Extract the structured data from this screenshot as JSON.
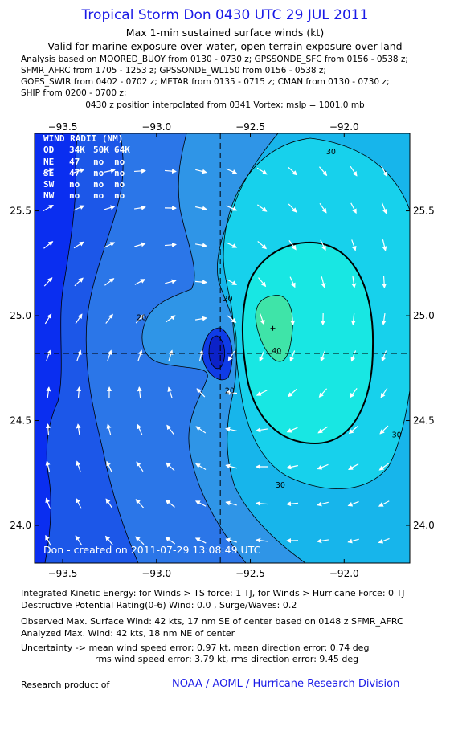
{
  "header": {
    "title": "Tropical Storm Don 0430 UTC 29 JUL 2011",
    "subtitle1": "Max 1-min sustained surface winds (kt)",
    "subtitle2": "Valid for marine exposure over water, open terrain exposure over land",
    "analysis_lines": [
      "Analysis based on MOORED_BUOY from 0130 - 0730 z; GPSSONDE_SFC from 0156 - 0538 z;",
      "SFMR_AFRC from 1705 - 1253 z; GPSSONDE_WL150 from 0156 - 0538 z;",
      "GOES_SWIR from 0402 - 0702 z; METAR from 0135 - 0715 z; CMAN from 0130 - 0730 z;",
      "SHIP from 0200 - 0700 z;"
    ],
    "position_note": "0430 z position interpolated from 0341 Vortex; mslp = 1001.0 mb"
  },
  "wind_radii": {
    "title": "WIND RADII (NM)",
    "columns": [
      "QD",
      "34K",
      "50K",
      "64K"
    ],
    "rows": [
      [
        "NE",
        "47",
        "no",
        "no"
      ],
      [
        "SE",
        "47",
        "no",
        "no"
      ],
      [
        "SW",
        "no",
        "no",
        "no"
      ],
      [
        "NW",
        "no",
        "no",
        "no"
      ]
    ]
  },
  "credit": "Don - created on 2011-07-29 13:08:49 UTC",
  "chart_data": {
    "type": "contour",
    "xlim": [
      -93.65,
      -91.65
    ],
    "ylim": [
      23.82,
      25.87
    ],
    "x_ticks": [
      -93.5,
      -93.0,
      -92.5,
      -92.0
    ],
    "y_ticks": [
      24.0,
      24.5,
      25.0,
      25.5
    ],
    "x_tick_labels": [
      "−93.5",
      "−93.0",
      "−92.5",
      "−92.0"
    ],
    "y_tick_labels": [
      "24.0",
      "24.5",
      "25.0",
      "25.5"
    ],
    "center": [
      -92.66,
      24.82
    ],
    "max_wind_marker": [
      -92.38,
      24.94
    ],
    "contour_labels": [
      {
        "text": "30",
        "x": -92.07,
        "y": 25.77
      },
      {
        "text": "20",
        "x": -93.08,
        "y": 24.98
      },
      {
        "text": "20",
        "x": -92.62,
        "y": 25.07
      },
      {
        "text": "20",
        "x": -92.61,
        "y": 24.63
      },
      {
        "text": "40",
        "x": -92.36,
        "y": 24.82
      },
      {
        "text": "30",
        "x": -92.34,
        "y": 24.18
      },
      {
        "text": "30",
        "x": -91.72,
        "y": 24.42
      }
    ],
    "colors": {
      "c0": "#0a2ef0",
      "c10": "#1c57e8",
      "c15": "#2b76e8",
      "c20": "#2f95e7",
      "c25": "#17b5eb",
      "c30": "#17d1ec",
      "c35": "#18e7e3",
      "c40": "#3fe4a8",
      "vortex_outer": "#0f3ce6",
      "vortex_inner": "#0c22c8"
    }
  },
  "footer": {
    "ike": "Integrated Kinetic Energy:  for Winds > TS force: 1 TJ,  for Winds > Hurricane Force: 0 TJ",
    "dpr": "Destructive Potential Rating(0-6)   Wind: 0.0 , Surge/Waves: 0.2",
    "obs_max": "Observed Max. Surface Wind: 42 kts, 17 nm SE of center based on 0148 z SFMR_AFRC",
    "analyzed_max": "Analyzed Max. Wind: 42 kts, 18 nm NE of center",
    "uncertainty1": "Uncertainty -> mean wind speed error: 0.97 kt,   mean direction error: 0.74 deg",
    "uncertainty2": "rms wind speed error: 3.79 kt,   rms direction error: 9.45 deg",
    "research": "Research product of",
    "org": "NOAA / AOML / Hurricane Research Division"
  }
}
